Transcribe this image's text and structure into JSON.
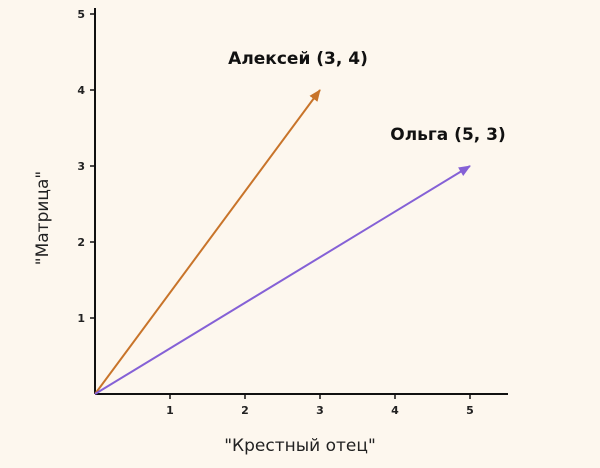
{
  "chart_data": {
    "type": "vector",
    "xlabel": "\"Крестный отец\"",
    "ylabel": "\"Матрица\"",
    "xlim": [
      0,
      5.5
    ],
    "ylim": [
      0,
      5.2
    ],
    "x_ticks": [
      1,
      2,
      3,
      4,
      5
    ],
    "y_ticks": [
      1,
      2,
      3,
      4,
      5
    ],
    "grid": false,
    "series": [
      {
        "label": "Алексей (3, 4)",
        "x": 3,
        "y": 4,
        "color": "#c8742a"
      },
      {
        "label": "Ольга (5, 3)",
        "x": 5,
        "y": 3,
        "color": "#8561d6"
      }
    ]
  }
}
